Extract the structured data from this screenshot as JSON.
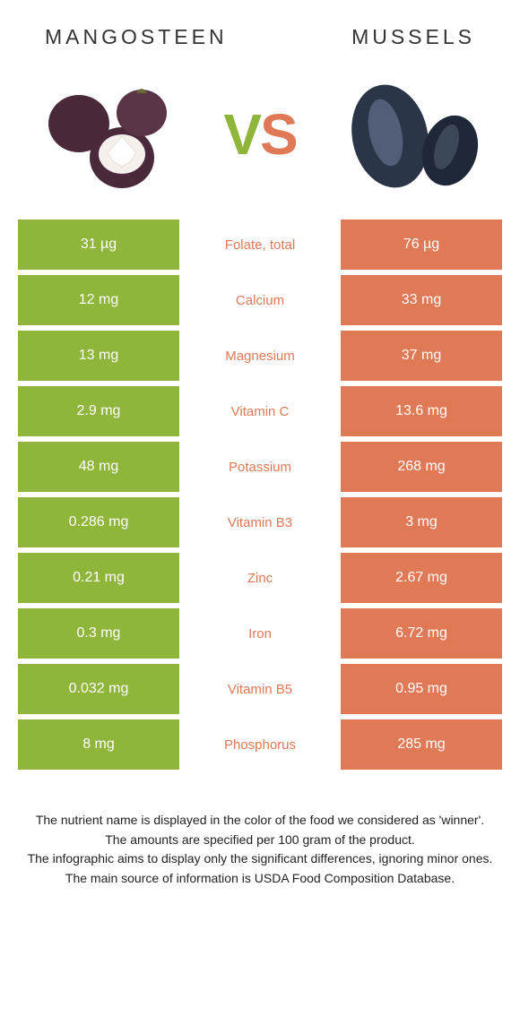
{
  "header": {
    "left_title": "Mangosteen",
    "right_title": "Mussels"
  },
  "vs": {
    "v": "V",
    "s": "S"
  },
  "colors": {
    "left": "#8fb53a",
    "right": "#e07a56",
    "mid_bg": "#ffffff",
    "text_on_color": "#ffffff",
    "mangosteen_shell": "#4a2a3a",
    "mangosteen_flesh": "#f5f0eb",
    "mangosteen_stem": "#6a6a35",
    "mussel_shell": "#2a3548",
    "mussel_highlight": "#7a88a5"
  },
  "table": {
    "rows": [
      {
        "left": "31 µg",
        "mid": "Folate, total",
        "right": "76 µg",
        "winner": "right"
      },
      {
        "left": "12 mg",
        "mid": "Calcium",
        "right": "33 mg",
        "winner": "right"
      },
      {
        "left": "13 mg",
        "mid": "Magnesium",
        "right": "37 mg",
        "winner": "right"
      },
      {
        "left": "2.9 mg",
        "mid": "Vitamin C",
        "right": "13.6 mg",
        "winner": "right"
      },
      {
        "left": "48 mg",
        "mid": "Potassium",
        "right": "268 mg",
        "winner": "right"
      },
      {
        "left": "0.286 mg",
        "mid": "Vitamin B3",
        "right": "3 mg",
        "winner": "right"
      },
      {
        "left": "0.21 mg",
        "mid": "Zinc",
        "right": "2.67 mg",
        "winner": "right"
      },
      {
        "left": "0.3 mg",
        "mid": "Iron",
        "right": "6.72 mg",
        "winner": "right"
      },
      {
        "left": "0.032 mg",
        "mid": "Vitamin B5",
        "right": "0.95 mg",
        "winner": "right"
      },
      {
        "left": "8 mg",
        "mid": "Phosphorus",
        "right": "285 mg",
        "winner": "right"
      }
    ]
  },
  "footnotes": {
    "line1": "The nutrient name is displayed in the color of the food we considered as 'winner'.",
    "line2": "The amounts are specified per 100 gram of the product.",
    "line3": "The infographic aims to display only the significant differences, ignoring minor ones.",
    "line4": "The main source of information is USDA Food Composition Database."
  }
}
